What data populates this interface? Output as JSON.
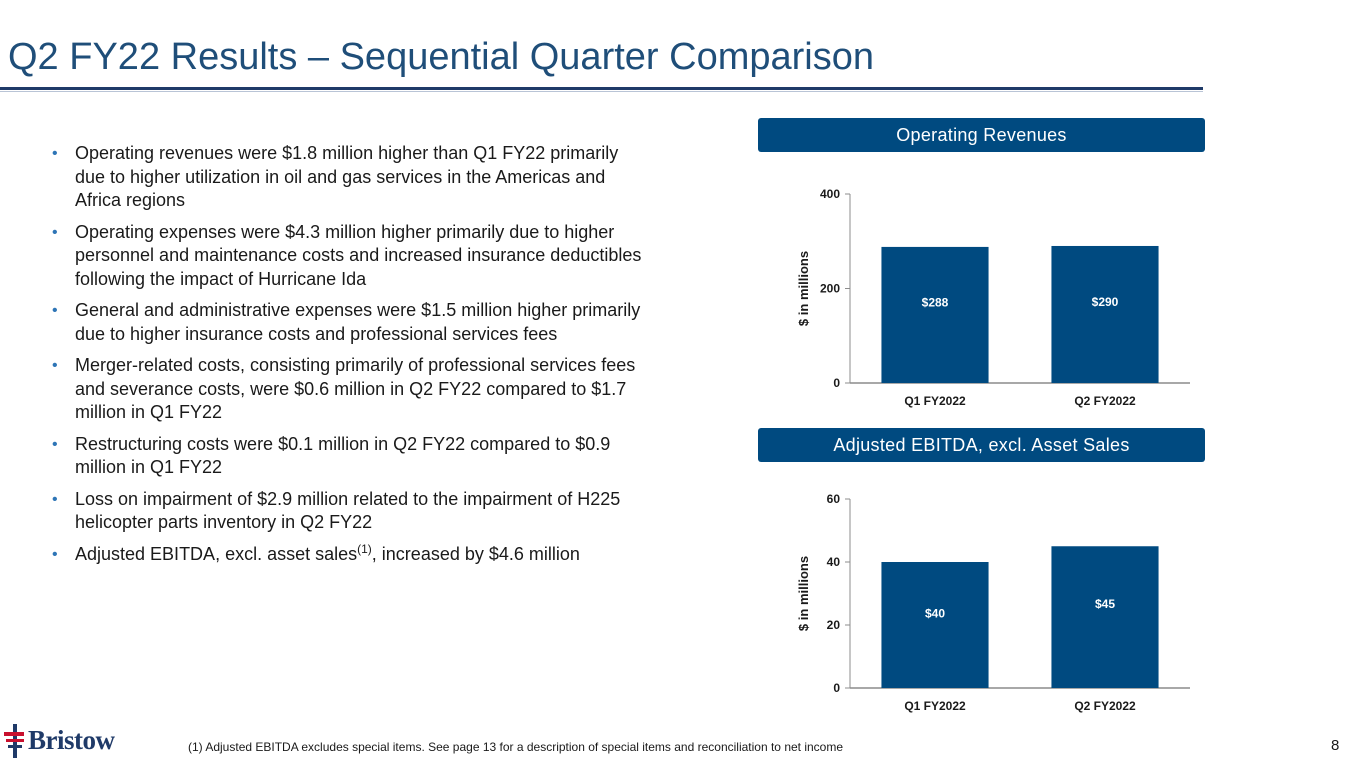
{
  "header": {
    "title": "Q2 FY22 Results – Sequential Quarter Comparison"
  },
  "bullets": [
    "Operating revenues were $1.8 million higher than Q1 FY22 primarily due to higher utilization in oil and gas services in the Americas and Africa regions",
    "Operating expenses were $4.3 million higher primarily due to higher personnel and maintenance costs and increased insurance deductibles following the impact of Hurricane Ida",
    "General and administrative expenses were $1.5 million higher primarily due to higher insurance costs and professional services fees",
    "Merger-related costs, consisting primarily of professional services fees and severance costs, were $0.6 million in Q2 FY22 compared to $1.7 million in Q1 FY22",
    "Restructuring costs were $0.1 million in Q2 FY22 compared to $0.9 million in Q1 FY22",
    "Loss on impairment of $2.9 million related to the impairment of H225 helicopter parts inventory in Q2 FY22"
  ],
  "last_bullet": {
    "before": "Adjusted EBITDA, excl. asset sales",
    "sup": "(1)",
    "after": ", increased by $4.6 million"
  },
  "footnote": "(1)  Adjusted EBITDA excludes special items. See page 13 for a description of special items and reconciliation to net income",
  "page_number": "8",
  "logo": {
    "text": "Bristow"
  },
  "colors": {
    "title": "#1f4e79",
    "panel": "#004a80",
    "bar": "#004a80",
    "bullet": "#2e75b6"
  },
  "chart_data": [
    {
      "type": "bar",
      "title": "Operating Revenues",
      "categories": [
        "Q1 FY2022",
        "Q2 FY2022"
      ],
      "values": [
        288,
        290
      ],
      "data_labels": [
        "$288",
        "$290"
      ],
      "ylabel": "$ in millions",
      "xlabel": "",
      "ylim": [
        0,
        400
      ],
      "yticks": [
        0,
        200,
        400
      ],
      "grid": false
    },
    {
      "type": "bar",
      "title": "Adjusted EBITDA, excl. Asset Sales",
      "categories": [
        "Q1 FY2022",
        "Q2 FY2022"
      ],
      "values": [
        40,
        45
      ],
      "data_labels": [
        "$40",
        "$45"
      ],
      "ylabel": "$ in millions",
      "xlabel": "",
      "ylim": [
        0,
        60
      ],
      "yticks": [
        0,
        20,
        40,
        60
      ],
      "grid": false
    }
  ]
}
